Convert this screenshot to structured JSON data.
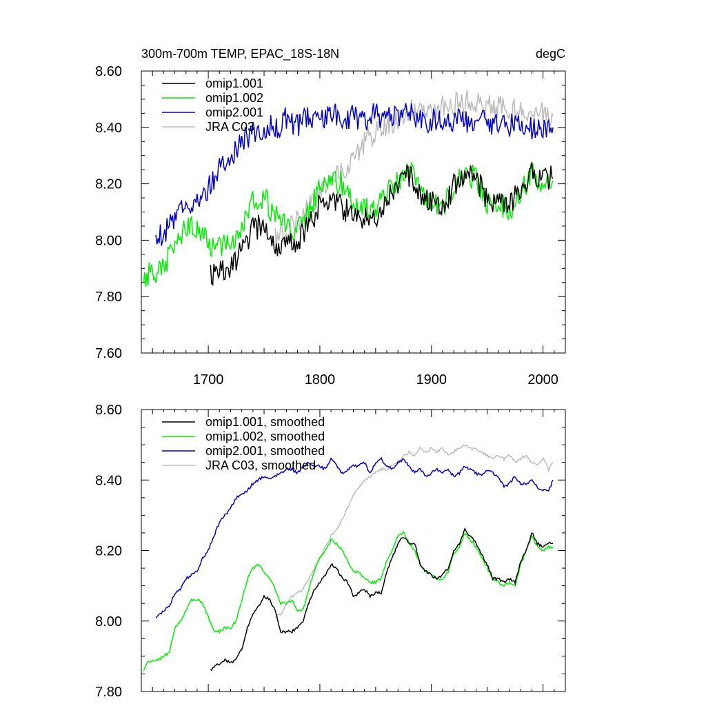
{
  "chart_data": [
    {
      "type": "line",
      "title": "300m-700m TEMP, EPAC_18S-18N",
      "units_label": "degC",
      "xlabel": "",
      "ylabel": "",
      "xlim": [
        1640,
        2020
      ],
      "ylim": [
        7.6,
        8.6
      ],
      "x_major_ticks": [
        1700,
        1800,
        1900,
        2000
      ],
      "x_tick_labels": [
        "1700",
        "1800",
        "1900",
        "2000"
      ],
      "y_major_ticks": [
        7.6,
        7.8,
        8.0,
        8.2,
        8.4,
        8.6
      ],
      "y_tick_labels": [
        "7.60",
        "7.80",
        "8.00",
        "8.20",
        "8.40",
        "8.60"
      ],
      "grid": false,
      "legend_position": "top-left",
      "smoothed": false,
      "series": [
        {
          "name": "omip1.001",
          "color": "#000000",
          "x": [
            1702,
            1710,
            1720,
            1730,
            1740,
            1750,
            1760,
            1770,
            1780,
            1790,
            1800,
            1810,
            1820,
            1830,
            1840,
            1850,
            1860,
            1870,
            1880,
            1890,
            1900,
            1910,
            1920,
            1930,
            1940,
            1950,
            1960,
            1970,
            1980,
            1990,
            2000,
            2009
          ],
          "y": [
            7.87,
            7.88,
            7.9,
            7.96,
            8.04,
            8.05,
            7.98,
            7.98,
            8.0,
            8.06,
            8.12,
            8.16,
            8.12,
            8.08,
            8.08,
            8.08,
            8.15,
            8.2,
            8.23,
            8.17,
            8.13,
            8.13,
            8.19,
            8.24,
            8.22,
            8.14,
            8.14,
            8.12,
            8.18,
            8.24,
            8.22,
            8.22
          ]
        },
        {
          "name": "omip1.002",
          "color": "#00ee00",
          "x": [
            1642,
            1650,
            1660,
            1670,
            1680,
            1690,
            1700,
            1710,
            1720,
            1730,
            1740,
            1750,
            1760,
            1770,
            1780,
            1790,
            1800,
            1810,
            1820,
            1830,
            1840,
            1850,
            1860,
            1870,
            1880,
            1890,
            1900,
            1910,
            1920,
            1930,
            1940,
            1950,
            1960,
            1970,
            1980,
            1990,
            2000,
            2009
          ],
          "y": [
            7.87,
            7.89,
            7.9,
            7.98,
            8.05,
            8.05,
            7.98,
            7.97,
            7.99,
            8.06,
            8.14,
            8.15,
            8.08,
            8.05,
            8.03,
            8.1,
            8.18,
            8.22,
            8.2,
            8.13,
            8.12,
            8.11,
            8.17,
            8.21,
            8.25,
            8.17,
            8.13,
            8.12,
            8.18,
            8.24,
            8.22,
            8.14,
            8.13,
            8.11,
            8.17,
            8.23,
            8.21,
            8.21
          ]
        },
        {
          "name": "omip2.001",
          "color": "#0000cc",
          "x": [
            1653,
            1660,
            1670,
            1680,
            1690,
            1700,
            1710,
            1720,
            1730,
            1740,
            1750,
            1760,
            1770,
            1780,
            1790,
            1800,
            1810,
            1820,
            1830,
            1840,
            1850,
            1860,
            1870,
            1880,
            1890,
            1900,
            1910,
            1920,
            1930,
            1940,
            1950,
            1960,
            1970,
            1980,
            1990,
            2000,
            2009
          ],
          "y": [
            8.01,
            8.03,
            8.07,
            8.12,
            8.14,
            8.18,
            8.25,
            8.3,
            8.35,
            8.38,
            8.4,
            8.4,
            8.43,
            8.41,
            8.43,
            8.44,
            8.45,
            8.43,
            8.44,
            8.42,
            8.45,
            8.43,
            8.44,
            8.45,
            8.43,
            8.42,
            8.43,
            8.42,
            8.42,
            8.43,
            8.41,
            8.42,
            8.41,
            8.41,
            8.4,
            8.38,
            8.4
          ]
        },
        {
          "name": "JRA C03",
          "color": "#bbbbbb",
          "x": [
            1760,
            1770,
            1780,
            1790,
            1800,
            1810,
            1820,
            1830,
            1840,
            1850,
            1860,
            1870,
            1880,
            1890,
            1900,
            1910,
            1920,
            1930,
            1940,
            1950,
            1960,
            1970,
            1980,
            1990,
            2000,
            2009
          ],
          "y": [
            8.01,
            8.04,
            8.07,
            8.11,
            8.17,
            8.23,
            8.25,
            8.3,
            8.35,
            8.38,
            8.4,
            8.43,
            8.45,
            8.47,
            8.47,
            8.47,
            8.48,
            8.49,
            8.48,
            8.47,
            8.47,
            8.46,
            8.46,
            8.45,
            8.45,
            8.44
          ]
        }
      ]
    },
    {
      "type": "line",
      "title": "",
      "xlabel": "",
      "ylabel": "",
      "xlim": [
        1640,
        2020
      ],
      "ylim": [
        7.8,
        8.6
      ],
      "x_major_ticks": [
        1700,
        1800,
        1900,
        2000
      ],
      "y_major_ticks": [
        7.8,
        8.0,
        8.2,
        8.4,
        8.6
      ],
      "y_tick_labels": [
        "7.80",
        "8.00",
        "8.20",
        "8.40",
        "8.60"
      ],
      "grid": false,
      "legend_position": "top-left",
      "smoothed": true,
      "series": [
        {
          "name": "omip1.001, smoothed",
          "color": "#000000",
          "x": [
            1702,
            1705,
            1710,
            1715,
            1720,
            1725,
            1730,
            1735,
            1740,
            1745,
            1750,
            1755,
            1760,
            1765,
            1770,
            1775,
            1780,
            1785,
            1790,
            1795,
            1800,
            1805,
            1810,
            1815,
            1820,
            1825,
            1830,
            1835,
            1840,
            1845,
            1850,
            1855,
            1860,
            1865,
            1870,
            1875,
            1880,
            1885,
            1890,
            1895,
            1900,
            1905,
            1910,
            1915,
            1920,
            1925,
            1930,
            1935,
            1940,
            1945,
            1950,
            1955,
            1960,
            1965,
            1970,
            1975,
            1980,
            1985,
            1990,
            1995,
            2000,
            2005,
            2009
          ],
          "y": [
            7.86,
            7.87,
            7.88,
            7.89,
            7.88,
            7.89,
            7.92,
            7.98,
            8.02,
            8.04,
            8.07,
            8.06,
            8.03,
            7.97,
            7.97,
            7.97,
            7.98,
            8.0,
            8.05,
            8.09,
            8.11,
            8.13,
            8.16,
            8.15,
            8.12,
            8.11,
            8.07,
            8.08,
            8.09,
            8.07,
            8.08,
            8.08,
            8.14,
            8.18,
            8.22,
            8.24,
            8.22,
            8.22,
            8.16,
            8.14,
            8.13,
            8.12,
            8.13,
            8.15,
            8.2,
            8.22,
            8.26,
            8.24,
            8.22,
            8.19,
            8.16,
            8.12,
            8.12,
            8.11,
            8.12,
            8.11,
            8.17,
            8.2,
            8.25,
            8.22,
            8.21,
            8.22,
            8.22
          ]
        },
        {
          "name": "omip1.002, smoothed",
          "color": "#00ee00",
          "x": [
            1642,
            1645,
            1650,
            1655,
            1660,
            1665,
            1670,
            1675,
            1680,
            1685,
            1690,
            1695,
            1700,
            1705,
            1710,
            1715,
            1720,
            1725,
            1730,
            1735,
            1740,
            1745,
            1750,
            1755,
            1760,
            1765,
            1770,
            1775,
            1780,
            1785,
            1790,
            1795,
            1800,
            1805,
            1810,
            1815,
            1820,
            1825,
            1830,
            1835,
            1840,
            1845,
            1850,
            1855,
            1860,
            1865,
            1870,
            1875,
            1880,
            1885,
            1890,
            1895,
            1900,
            1905,
            1910,
            1915,
            1920,
            1925,
            1930,
            1935,
            1940,
            1945,
            1950,
            1955,
            1960,
            1965,
            1970,
            1975,
            1980,
            1985,
            1990,
            1995,
            2000,
            2005,
            2009
          ],
          "y": [
            7.86,
            7.88,
            7.89,
            7.89,
            7.9,
            7.91,
            7.98,
            8.0,
            8.03,
            8.06,
            8.06,
            8.05,
            8.01,
            7.97,
            7.97,
            7.98,
            7.98,
            8.0,
            8.06,
            8.12,
            8.15,
            8.16,
            8.14,
            8.12,
            8.09,
            8.05,
            8.05,
            8.06,
            8.03,
            8.03,
            8.09,
            8.14,
            8.18,
            8.2,
            8.23,
            8.22,
            8.2,
            8.17,
            8.14,
            8.14,
            8.12,
            8.11,
            8.11,
            8.12,
            8.17,
            8.2,
            8.24,
            8.25,
            8.22,
            8.2,
            8.16,
            8.14,
            8.13,
            8.12,
            8.12,
            8.14,
            8.19,
            8.21,
            8.25,
            8.23,
            8.21,
            8.18,
            8.15,
            8.12,
            8.11,
            8.1,
            8.11,
            8.1,
            8.16,
            8.2,
            8.24,
            8.21,
            8.2,
            8.21,
            8.21
          ]
        },
        {
          "name": "omip2.001, smoothed",
          "color": "#0000cc",
          "x": [
            1653,
            1660,
            1665,
            1670,
            1675,
            1680,
            1685,
            1690,
            1695,
            1700,
            1705,
            1710,
            1715,
            1720,
            1725,
            1730,
            1735,
            1740,
            1745,
            1750,
            1755,
            1760,
            1765,
            1770,
            1775,
            1780,
            1785,
            1790,
            1795,
            1800,
            1805,
            1810,
            1815,
            1820,
            1825,
            1830,
            1835,
            1840,
            1845,
            1850,
            1855,
            1860,
            1865,
            1870,
            1875,
            1880,
            1885,
            1890,
            1895,
            1900,
            1905,
            1910,
            1915,
            1920,
            1925,
            1930,
            1935,
            1940,
            1945,
            1950,
            1955,
            1960,
            1965,
            1970,
            1975,
            1980,
            1985,
            1990,
            1995,
            2000,
            2005,
            2009
          ],
          "y": [
            8.01,
            8.03,
            8.04,
            8.08,
            8.09,
            8.12,
            8.13,
            8.14,
            8.18,
            8.2,
            8.24,
            8.28,
            8.3,
            8.32,
            8.35,
            8.36,
            8.37,
            8.39,
            8.4,
            8.41,
            8.4,
            8.41,
            8.42,
            8.43,
            8.43,
            8.42,
            8.44,
            8.45,
            8.44,
            8.44,
            8.43,
            8.46,
            8.44,
            8.42,
            8.43,
            8.44,
            8.44,
            8.45,
            8.42,
            8.45,
            8.46,
            8.44,
            8.43,
            8.45,
            8.46,
            8.44,
            8.42,
            8.43,
            8.41,
            8.42,
            8.43,
            8.42,
            8.43,
            8.41,
            8.42,
            8.44,
            8.43,
            8.42,
            8.41,
            8.43,
            8.42,
            8.41,
            8.38,
            8.39,
            8.41,
            8.39,
            8.39,
            8.4,
            8.38,
            8.37,
            8.37,
            8.4
          ]
        },
        {
          "name": "JRA C03, smoothed",
          "color": "#bbbbbb",
          "x": [
            1760,
            1765,
            1770,
            1775,
            1780,
            1785,
            1790,
            1795,
            1800,
            1805,
            1810,
            1815,
            1820,
            1825,
            1830,
            1835,
            1840,
            1845,
            1850,
            1855,
            1860,
            1865,
            1870,
            1875,
            1880,
            1885,
            1890,
            1895,
            1900,
            1905,
            1910,
            1915,
            1920,
            1925,
            1930,
            1935,
            1940,
            1945,
            1950,
            1955,
            1960,
            1965,
            1970,
            1975,
            1980,
            1985,
            1990,
            1995,
            2000,
            2005,
            2009
          ],
          "y": [
            8.01,
            8.02,
            8.05,
            8.07,
            8.08,
            8.09,
            8.12,
            8.15,
            8.18,
            8.21,
            8.24,
            8.26,
            8.29,
            8.32,
            8.36,
            8.38,
            8.4,
            8.41,
            8.42,
            8.43,
            8.43,
            8.44,
            8.45,
            8.47,
            8.48,
            8.47,
            8.49,
            8.48,
            8.49,
            8.48,
            8.49,
            8.47,
            8.48,
            8.49,
            8.5,
            8.49,
            8.49,
            8.48,
            8.47,
            8.46,
            8.47,
            8.46,
            8.47,
            8.45,
            8.46,
            8.47,
            8.45,
            8.44,
            8.46,
            8.43,
            8.45
          ]
        }
      ]
    }
  ]
}
